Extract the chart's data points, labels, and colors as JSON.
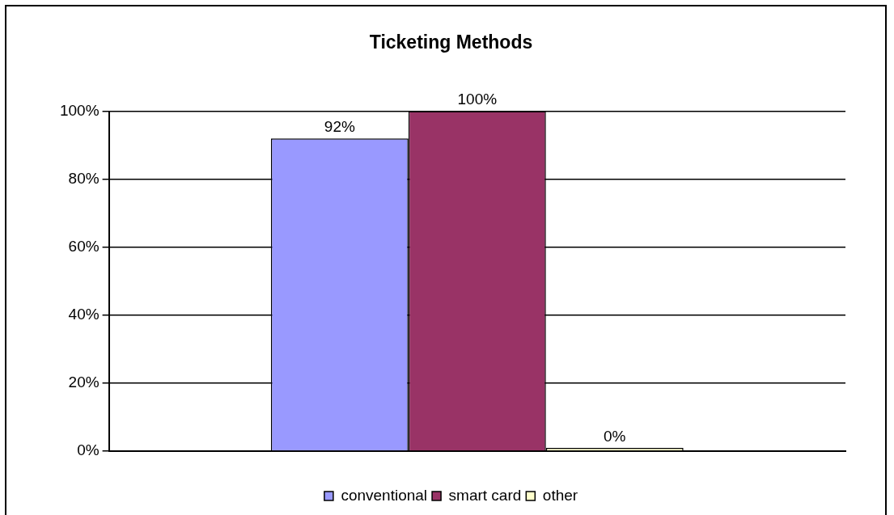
{
  "chart_data": {
    "type": "bar",
    "title": "Ticketing Methods",
    "categories": [
      null
    ],
    "series": [
      {
        "name": "conventional",
        "color": "#9999ff",
        "values": [
          92
        ],
        "value_labels": [
          "92%"
        ]
      },
      {
        "name": "smart card",
        "color": "#993366",
        "values": [
          100
        ],
        "value_labels": [
          "100%"
        ]
      },
      {
        "name": "other",
        "color": "#ffffcc",
        "values": [
          0
        ],
        "value_labels": [
          "0%"
        ]
      }
    ],
    "ylim": [
      0,
      100
    ],
    "yticks": [
      {
        "value": 0,
        "label": "0%"
      },
      {
        "value": 20,
        "label": "20%"
      },
      {
        "value": 40,
        "label": "40%"
      },
      {
        "value": 60,
        "label": "60%"
      },
      {
        "value": 80,
        "label": "80%"
      },
      {
        "value": 100,
        "label": "100%"
      }
    ],
    "grid": "y",
    "legend": "bottom",
    "tick_labels": "y"
  }
}
